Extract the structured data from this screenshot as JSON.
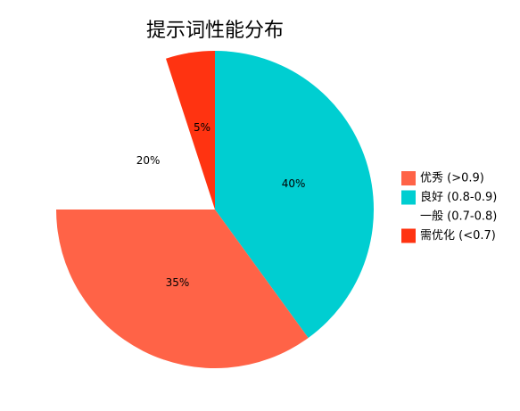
{
  "chart_data": {
    "type": "pie",
    "title": "提示词性能分布",
    "categories": [
      "优秀 (>0.9)",
      "良好 (0.8-0.9)",
      "一般 (0.7-0.8)",
      "需优化 (<0.7)"
    ],
    "values": [
      35,
      40,
      20,
      5
    ],
    "value_labels": [
      "35%",
      "40%",
      "20%",
      "5%"
    ],
    "colors": [
      "#FF6347",
      "#00CED1",
      "#FFFFFF",
      "#FF3311"
    ],
    "legend": "right"
  }
}
